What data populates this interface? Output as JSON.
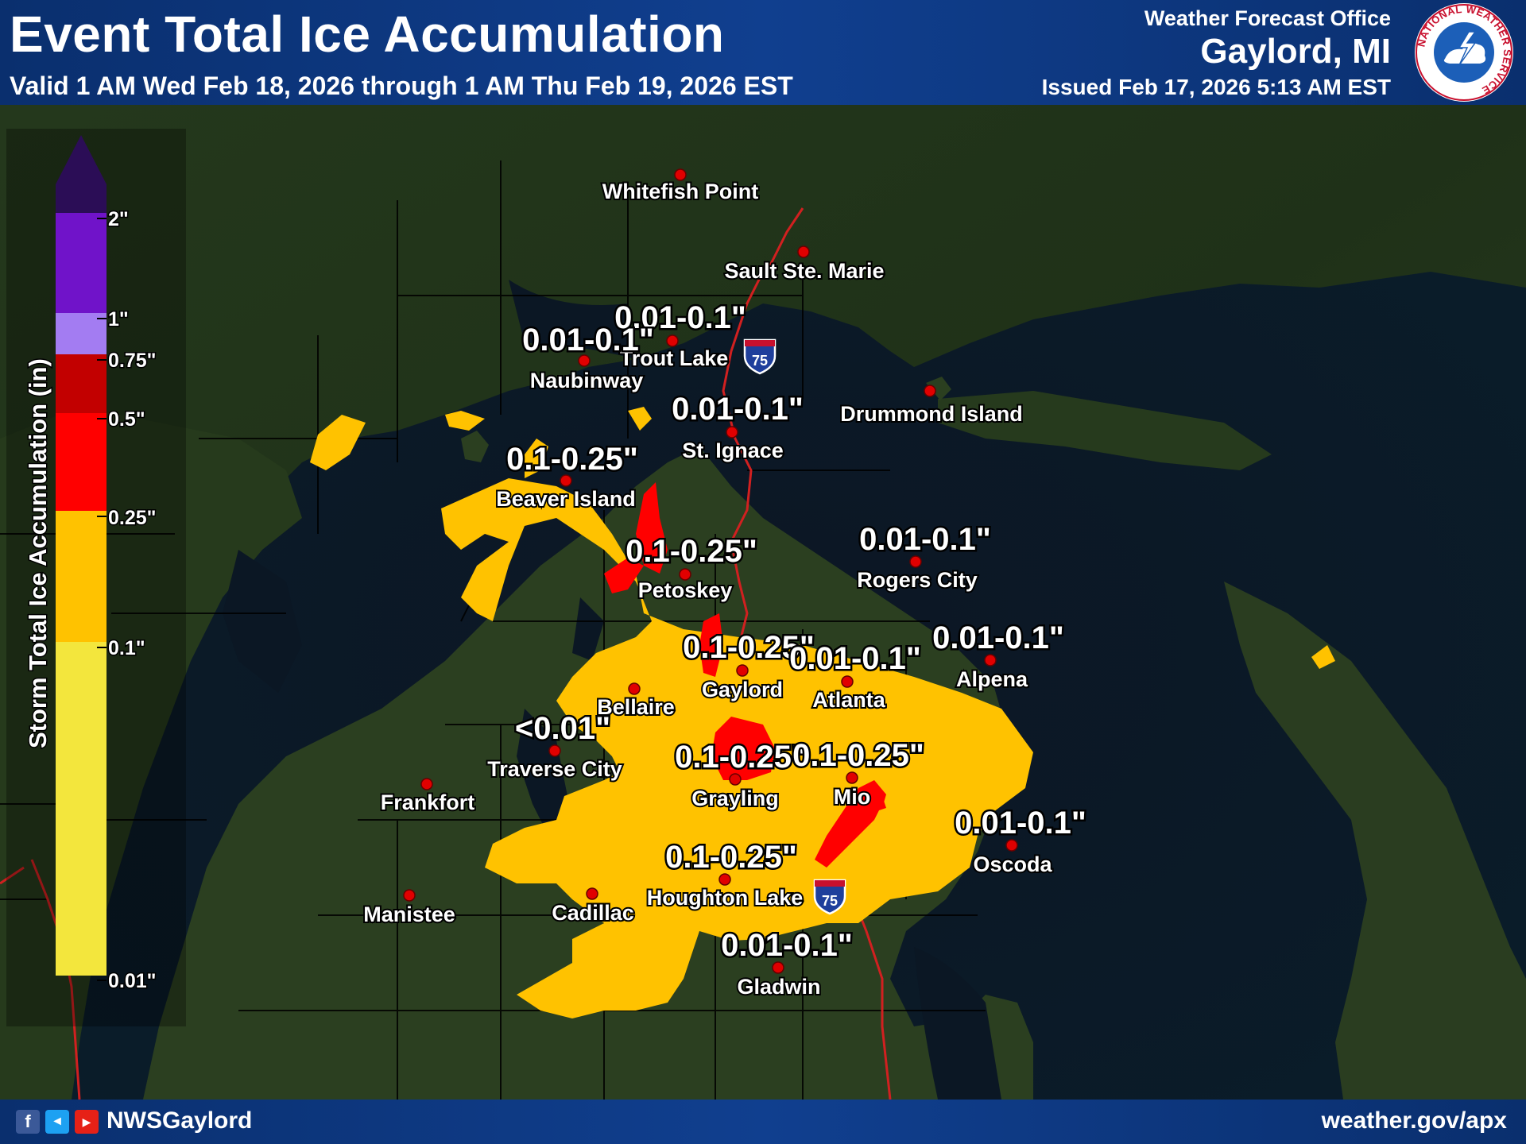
{
  "header": {
    "title": "Event Total Ice Accumulation",
    "valid": "Valid 1 AM Wed Feb 18, 2026 through 1 AM Thu Feb 19, 2026 EST",
    "wfo_label": "Weather Forecast Office",
    "office": "Gaylord, MI",
    "issued": "Issued Feb 17, 2026 5:13 AM EST",
    "logo_text": "NATIONAL WEATHER SERVICE"
  },
  "legend": {
    "title": "Storm Total Ice Accumulation (in)",
    "ticks": [
      "2\"",
      "1\"",
      "0.75\"",
      "0.5\"",
      "0.25\"",
      "0.1\"",
      "0.01\""
    ],
    "colors": {
      "2_plus": "#2b0d56",
      "1_2": "#7013c9",
      "0.75_1": "#a37cf2",
      "0.5_0.75": "#c20000",
      "0.25_0.5": "#ff0000",
      "0.1_0.25": "#ffc200",
      "0.01_0.1": "#f3e63d"
    }
  },
  "highway_shield": "75",
  "map": {
    "labels": [
      {
        "city": "Whitefish Point",
        "value": ""
      },
      {
        "city": "Sault Ste. Marie",
        "value": ""
      },
      {
        "city": "Trout Lake",
        "value": "0.01-0.1\""
      },
      {
        "city": "Naubinway",
        "value": "0.01-0.1\""
      },
      {
        "city": "St. Ignace",
        "value": "0.01-0.1\""
      },
      {
        "city": "Drummond Island",
        "value": ""
      },
      {
        "city": "Beaver Island",
        "value": "0.1-0.25\""
      },
      {
        "city": "Petoskey",
        "value": "0.1-0.25\""
      },
      {
        "city": "Rogers City",
        "value": "0.01-0.1\""
      },
      {
        "city": "Gaylord",
        "value": "0.1-0.25\""
      },
      {
        "city": "Atlanta",
        "value": "0.01-0.1\""
      },
      {
        "city": "Alpena",
        "value": "0.01-0.1\""
      },
      {
        "city": "Bellaire",
        "value": ""
      },
      {
        "city": "Traverse City",
        "value": "<0.01\""
      },
      {
        "city": "Frankfort",
        "value": ""
      },
      {
        "city": "Grayling",
        "value": "0.1-0.25\""
      },
      {
        "city": "Mio",
        "value": "0.1-0.25\""
      },
      {
        "city": "Oscoda",
        "value": "0.01-0.1\""
      },
      {
        "city": "Houghton Lake",
        "value": "0.1-0.25\""
      },
      {
        "city": "Manistee",
        "value": ""
      },
      {
        "city": "Cadillac",
        "value": ""
      },
      {
        "city": "Gladwin",
        "value": "0.01-0.1\""
      }
    ]
  },
  "footer": {
    "handle": "NWSGaylord",
    "website": "weather.gov/apx",
    "social_icons": [
      "facebook-icon",
      "twitter-icon",
      "youtube-icon"
    ]
  }
}
